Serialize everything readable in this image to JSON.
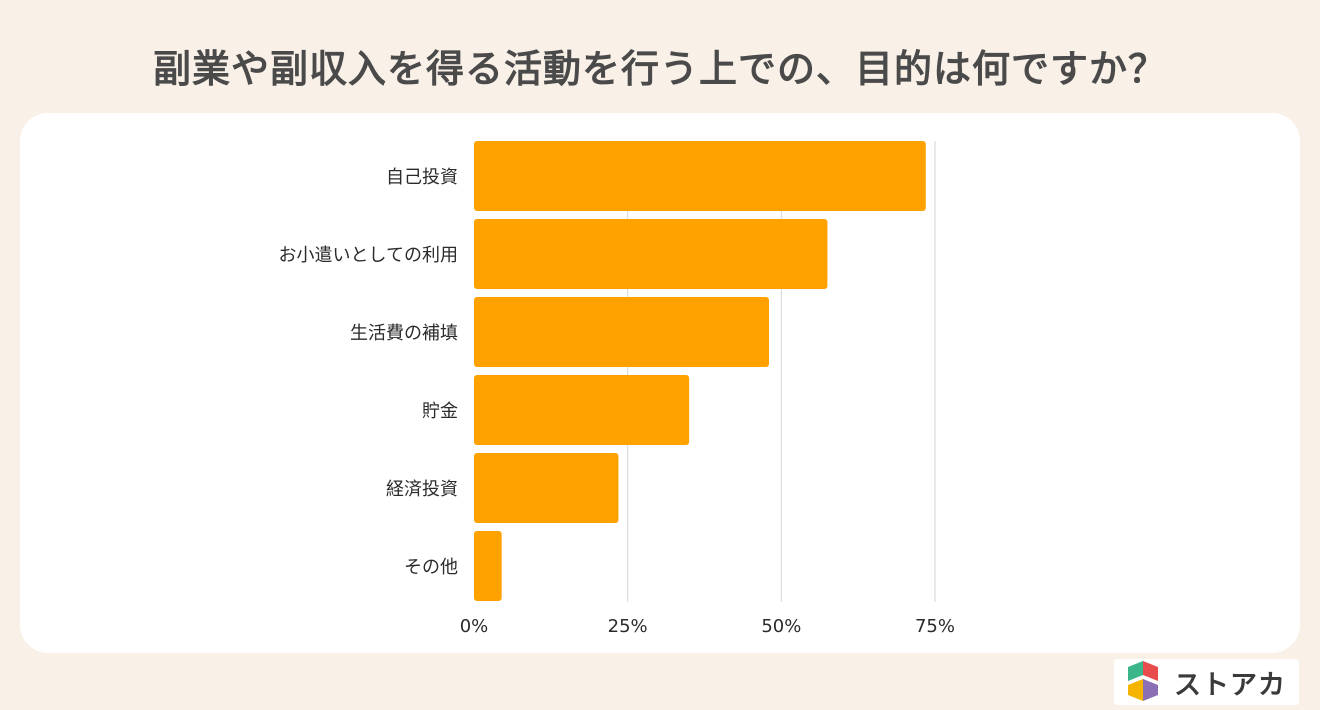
{
  "title": "副業や副収入を得る活動を行う上での、目的は何ですか？",
  "chart_data": {
    "type": "bar",
    "orientation": "horizontal",
    "categories": [
      "自己投資",
      "お小遣いとしての利用",
      "生活費の補填",
      "貯金",
      "経済投資",
      "その他"
    ],
    "values": [
      73.5,
      57.5,
      48.0,
      35.0,
      23.5,
      4.5
    ],
    "unit": "%",
    "xlim": [
      0,
      75
    ],
    "xticks": [
      "0%",
      "25%",
      "50%",
      "75%"
    ],
    "xtick_values": [
      0,
      25,
      50,
      75
    ],
    "grid": true,
    "bar_color": "#ffa200"
  },
  "brand": {
    "name": "ストアカ",
    "colors": [
      "#3bb58a",
      "#e84c4c",
      "#f5b400"
    ]
  }
}
